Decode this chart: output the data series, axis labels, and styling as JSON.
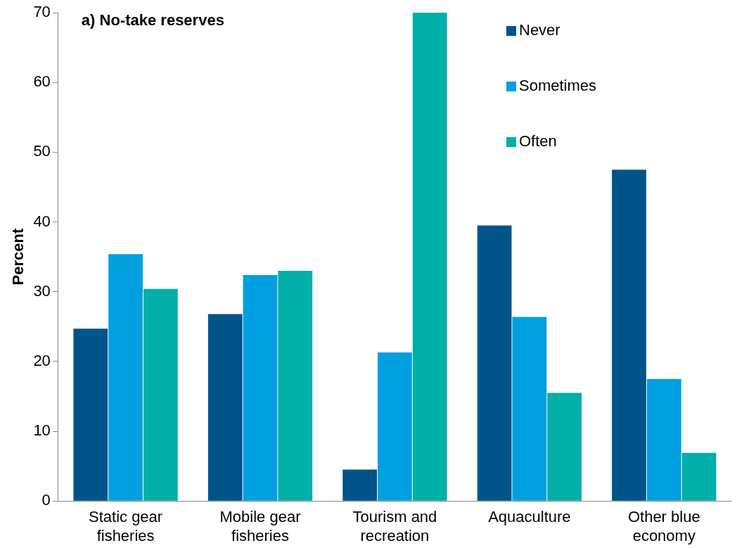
{
  "chart_data": {
    "type": "bar",
    "title": "a) No-take reserves",
    "ylabel": "Percent",
    "categories": [
      "Static gear fisheries",
      "Mobile gear fisheries",
      "Tourism and recreation",
      "Aquaculture",
      "Other blue economy"
    ],
    "series": [
      {
        "name": "Never",
        "color": "#00548a",
        "values": [
          24.7,
          26.8,
          4.5,
          39.5,
          47.5
        ]
      },
      {
        "name": "Sometimes",
        "color": "#00a0e0",
        "values": [
          35.4,
          32.4,
          21.3,
          26.4,
          17.5
        ]
      },
      {
        "name": "Often",
        "color": "#00afa8",
        "values": [
          30.4,
          33.0,
          70.0,
          15.5,
          6.9
        ]
      }
    ],
    "ylim": [
      0,
      70
    ],
    "yticks": [
      0,
      10,
      20,
      30,
      40,
      50,
      60,
      70
    ],
    "grid": false,
    "legend": "top right"
  }
}
